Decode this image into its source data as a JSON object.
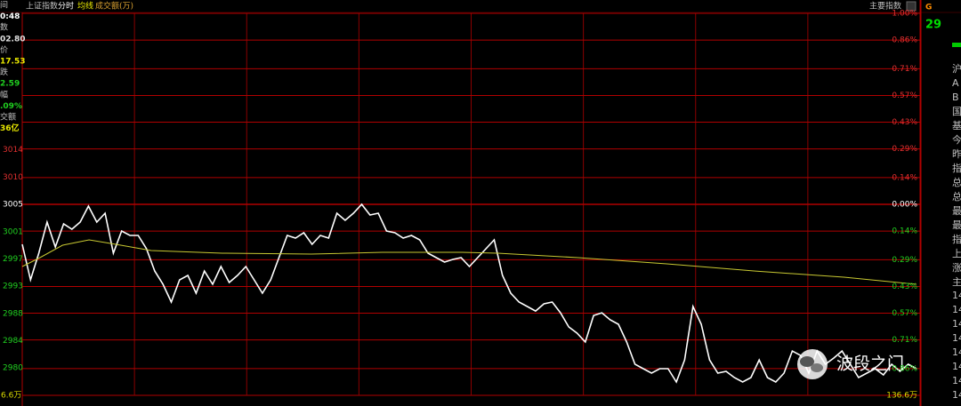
{
  "header": {
    "items": [
      "上证指数",
      "分时",
      "均线",
      "成交额(万)"
    ],
    "right": "主要指数"
  },
  "left_panel": {
    "items": [
      "间",
      "0:48",
      "数",
      "02.80",
      "价",
      "17.53",
      "跌",
      "2.59",
      "幅",
      ".09%",
      "交额",
      "36亿"
    ]
  },
  "right_panel": {
    "top": [
      "G",
      "29"
    ],
    "items": [
      "沪",
      "A",
      "B",
      "国",
      "基",
      "今",
      "昨",
      "指",
      "总",
      "总",
      "最",
      "最",
      "指",
      "上",
      "涨",
      "主",
      "14",
      "14",
      "14",
      "14",
      "14",
      "14",
      "14",
      "14"
    ]
  },
  "watermark": "波段之门",
  "chart_data": {
    "type": "line",
    "volume_labels": [
      "6.6万",
      "136.6万"
    ],
    "ylim": [
      2975.25,
      3035.35
    ],
    "yticks": [
      {
        "value": 3013.89,
        "label": "3014"
      },
      {
        "value": 3009.59,
        "label": "3010"
      },
      {
        "value": 3005.3,
        "label": "3005"
      },
      {
        "value": 3001.0,
        "label": "3001"
      },
      {
        "value": 2996.71,
        "label": "2997"
      },
      {
        "value": 2992.42,
        "label": "2993"
      },
      {
        "value": 2988.13,
        "label": "2988"
      },
      {
        "value": 2983.84,
        "label": "2984"
      },
      {
        "value": 2979.55,
        "label": "2980"
      }
    ],
    "y2lim": [
      -1,
      1
    ],
    "y2ticks": [
      {
        "value": 1,
        "label": "1.00%"
      },
      {
        "value": 0.86,
        "label": "0.86%"
      },
      {
        "value": 0.71,
        "label": "0.71%"
      },
      {
        "value": 0.57,
        "label": "0.57%"
      },
      {
        "value": 0.43,
        "label": "0.43%"
      },
      {
        "value": 0.29,
        "label": "0.29%"
      },
      {
        "value": 0.14,
        "label": "0.14%"
      },
      {
        "value": 0,
        "label": "0.00%"
      },
      {
        "value": -0.14,
        "label": "0.14%"
      },
      {
        "value": -0.29,
        "label": "0.29%"
      },
      {
        "value": -0.43,
        "label": "0.43%"
      },
      {
        "value": -0.57,
        "label": "0.57%"
      },
      {
        "value": -0.71,
        "label": "0.71%"
      },
      {
        "value": -0.86,
        "label": "0.86%"
      }
    ],
    "xlim": [
      0,
      111
    ],
    "grid": true,
    "series": [
      {
        "color": "#ffffff",
        "values": [
          2999.01,
          2993.42,
          2997.61,
          3002.5,
          2998.59,
          3002.22,
          3001.39,
          3002.5,
          3005.02,
          3002.5,
          3003.9,
          2997.61,
          3001.11,
          3000.41,
          3000.41,
          2998.31,
          2994.81,
          2992.72,
          2989.92,
          2993.42,
          2994.12,
          2991.32,
          2994.81,
          2992.72,
          2995.51,
          2993.0,
          2994.12,
          2995.51,
          2993.42,
          2991.32,
          2993.42,
          2996.91,
          3000.41,
          2999.99,
          3000.83,
          2999.01,
          3000.41,
          2999.99,
          3003.9,
          3002.78,
          3003.9,
          3005.3,
          3003.62,
          3003.9,
          3001.11,
          3000.83,
          2999.99,
          3000.41,
          2999.71,
          2997.61,
          2996.91,
          2996.21,
          2996.63,
          2996.91,
          2995.51,
          2996.91,
          2998.31,
          2999.71,
          2994.12,
          2991.32,
          2989.92,
          2989.22,
          2988.52,
          2989.64,
          2989.92,
          2988.24,
          2986.01,
          2985.03,
          2983.63,
          2987.82,
          2988.24,
          2987.13,
          2986.43,
          2983.63,
          2980.14,
          2979.44,
          2978.74,
          2979.44,
          2979.44,
          2977.34,
          2980.83,
          2989.22,
          2986.43,
          2980.83,
          2978.74,
          2979.02,
          2978.04,
          2977.34,
          2978.04,
          2980.83,
          2978.04,
          2977.34,
          2978.74,
          2982.23,
          2981.53,
          2978.74,
          2982.23,
          2980.14,
          2981.11,
          2982.23,
          2980.14,
          2978.04,
          2978.74,
          2979.44,
          2978.46,
          2980.14,
          2979.02,
          2980.14,
          2979.44
        ]
      },
      {
        "color": "#c8c832",
        "x": [
          0,
          2.2,
          5,
          8.3,
          11.6,
          16,
          24.8,
          35.9,
          44.7,
          54.6,
          59,
          69,
          80,
          91,
          102,
          111
        ],
        "values": [
          2995.51,
          2996.91,
          2998.87,
          2999.71,
          2999.01,
          2998.03,
          2997.61,
          2997.47,
          2997.75,
          2997.75,
          2997.61,
          2996.91,
          2995.93,
          2994.81,
          2993.84,
          2992.72
        ]
      }
    ]
  }
}
